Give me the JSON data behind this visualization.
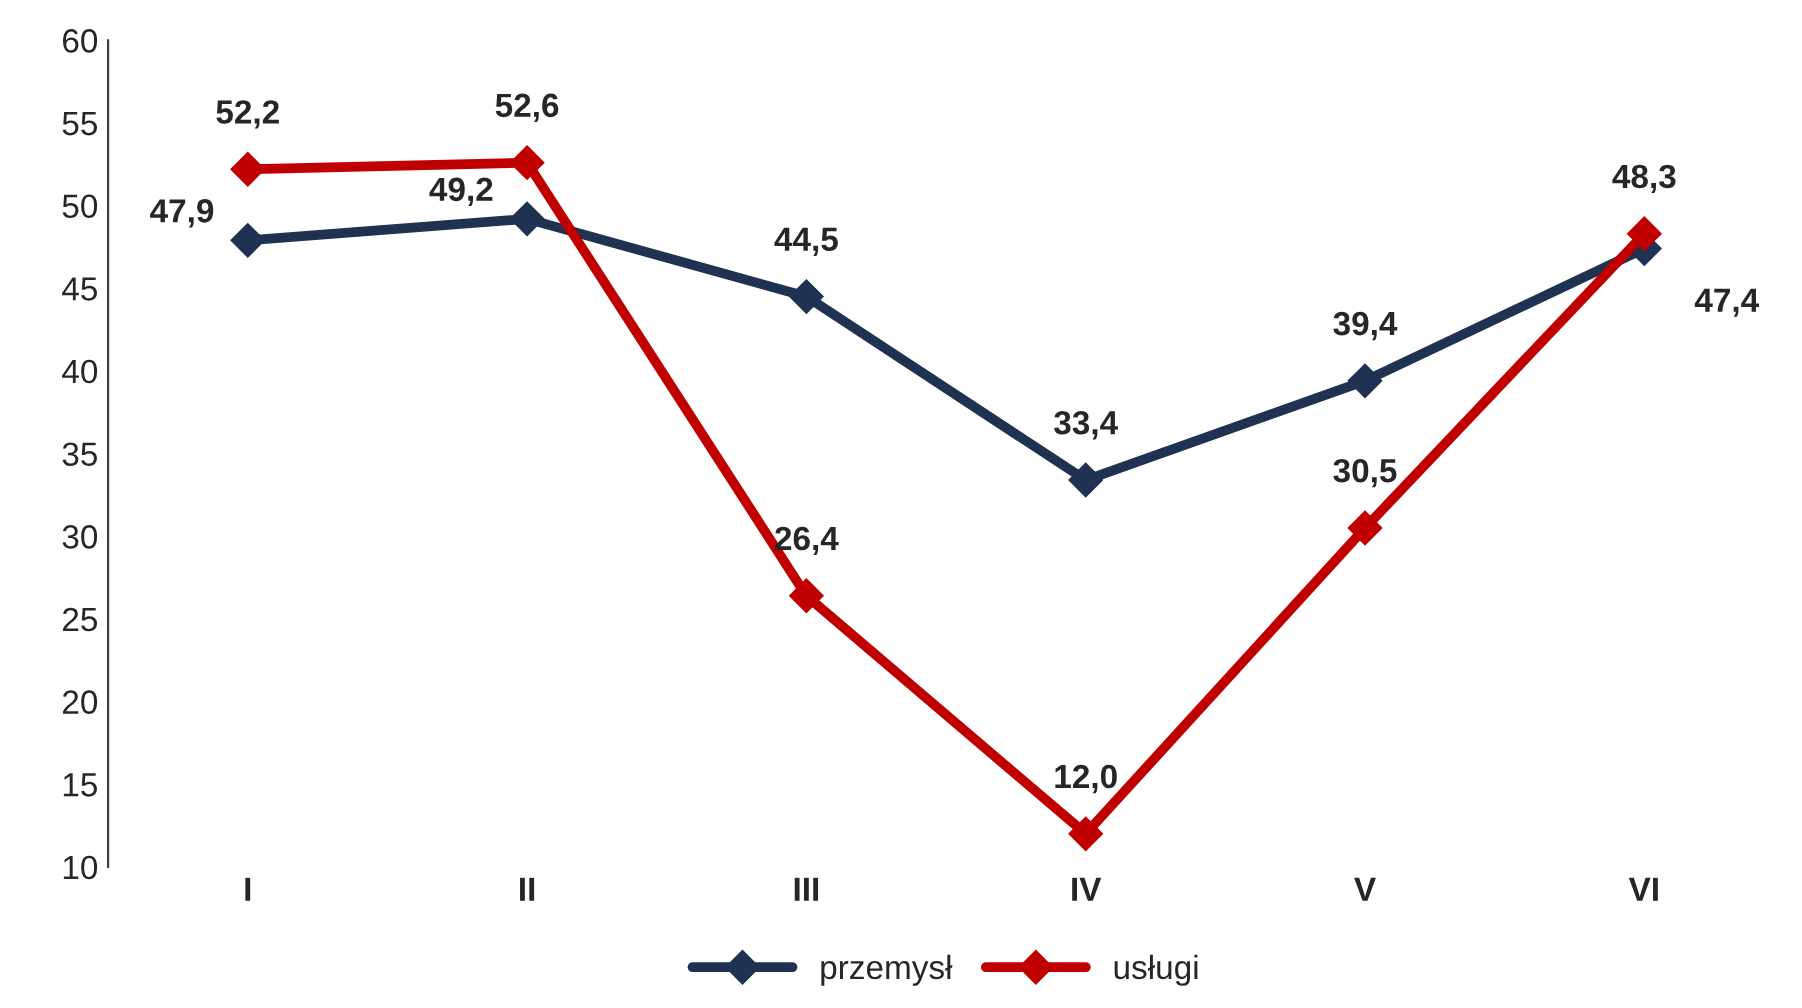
{
  "chart_data": {
    "type": "line",
    "categories": [
      "I",
      "II",
      "III",
      "IV",
      "V",
      "VI"
    ],
    "series": [
      {
        "name": "przemysł",
        "color": "#1f3252",
        "values": [
          47.9,
          49.2,
          44.5,
          33.4,
          39.4,
          47.4
        ],
        "value_labels": [
          "47,9",
          "49,2",
          "44,5",
          "33,4",
          "39,4",
          "47,4"
        ]
      },
      {
        "name": "usługi",
        "color": "#c00000",
        "values": [
          52.2,
          52.6,
          26.4,
          12.0,
          30.5,
          48.3
        ],
        "value_labels": [
          "52,2",
          "52,6",
          "26,4",
          "12,0",
          "30,5",
          "48,3"
        ]
      }
    ],
    "ylim": [
      10,
      60
    ],
    "yticks": [
      10,
      15,
      20,
      25,
      30,
      35,
      40,
      45,
      50,
      55,
      60
    ],
    "grid": false,
    "legend": "bottom",
    "marker": "diamond",
    "line_style": "solid"
  }
}
